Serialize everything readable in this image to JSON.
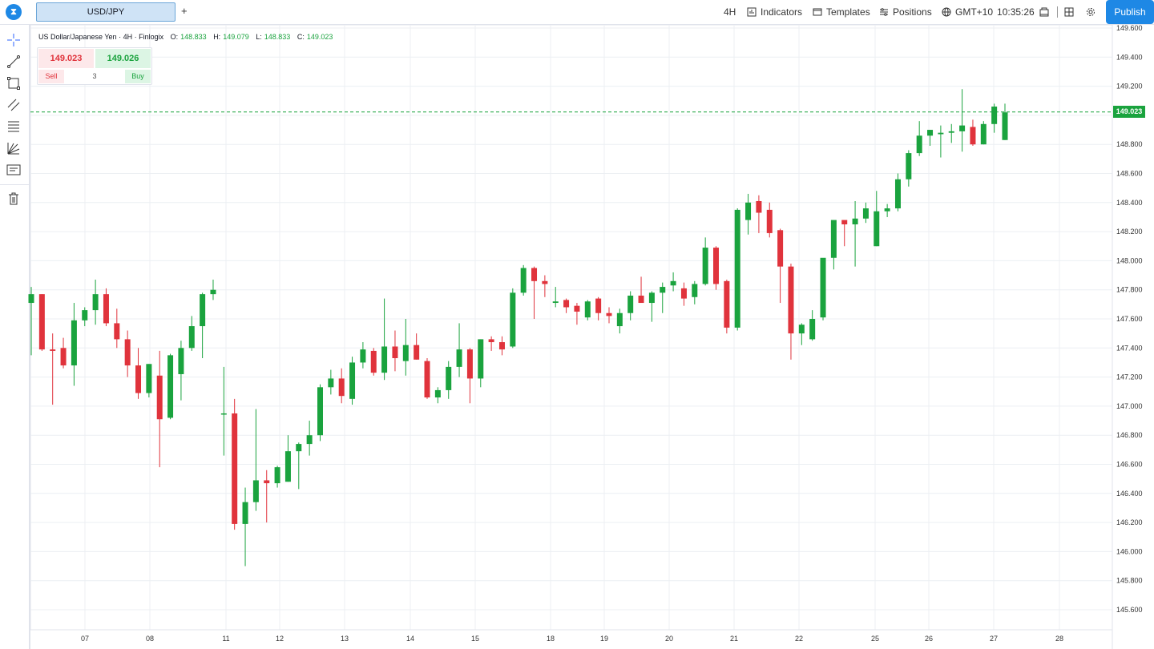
{
  "topbar": {
    "logo_glyph": "⧗",
    "tab_label": "USD/JPY",
    "add_tab": "+",
    "timeframe": "4H",
    "indicators": "Indicators",
    "templates": "Templates",
    "positions": "Positions",
    "timezone": "GMT+10",
    "clock": "10:35:26",
    "publish": "Publish"
  },
  "left_toolbar": [
    "crosshair-icon",
    "trendline-icon",
    "rectangle-icon",
    "parallel-channel-icon",
    "fib-retracement-icon",
    "pitchfork-icon",
    "text-note-icon",
    "trash-icon"
  ],
  "legend": {
    "title": "US Dollar/Japanese Yen · 4H · Finlogix",
    "o_label": "O:",
    "o_value": "148.833",
    "h_label": "H:",
    "h_value": "149.079",
    "l_label": "L:",
    "l_value": "148.833",
    "c_label": "C:",
    "c_value": "149.023"
  },
  "trade_panel": {
    "sell_price": "149.023",
    "buy_price": "149.026",
    "sell_label": "Sell",
    "quantity": "3",
    "buy_label": "Buy"
  },
  "current_price": "149.023",
  "colors": {
    "up": "#1aa33e",
    "down": "#e0333c",
    "accent": "#1e88e5",
    "grid": "#eceff3"
  },
  "chart_data": {
    "type": "candlestick",
    "ylim": [
      145.45,
      149.62
    ],
    "y_ticks": [
      "149.600",
      "149.400",
      "149.200",
      "149.000",
      "148.800",
      "148.600",
      "148.400",
      "148.200",
      "148.000",
      "147.800",
      "147.600",
      "147.400",
      "147.200",
      "147.000",
      "146.800",
      "146.600",
      "146.400",
      "146.200",
      "146.000",
      "145.800",
      "145.600"
    ],
    "x_labels": [
      "07",
      "08",
      "11",
      "12",
      "13",
      "14",
      "15",
      "18",
      "19",
      "20",
      "21",
      "22",
      "25",
      "26",
      "27",
      "28"
    ],
    "candles": [
      {
        "o": 147.71,
        "h": 147.82,
        "l": 147.35,
        "c": 147.77
      },
      {
        "o": 147.77,
        "h": 147.77,
        "l": 147.38,
        "c": 147.39
      },
      {
        "o": 147.39,
        "h": 147.5,
        "l": 147.01,
        "c": 147.38
      },
      {
        "o": 147.4,
        "h": 147.47,
        "l": 147.26,
        "c": 147.28
      },
      {
        "o": 147.28,
        "h": 147.71,
        "l": 147.14,
        "c": 147.59
      },
      {
        "o": 147.59,
        "h": 147.68,
        "l": 147.55,
        "c": 147.66
      },
      {
        "o": 147.66,
        "h": 147.87,
        "l": 147.56,
        "c": 147.77
      },
      {
        "o": 147.77,
        "h": 147.81,
        "l": 147.55,
        "c": 147.57
      },
      {
        "o": 147.57,
        "h": 147.67,
        "l": 147.4,
        "c": 147.46
      },
      {
        "o": 147.46,
        "h": 147.52,
        "l": 147.2,
        "c": 147.28
      },
      {
        "o": 147.28,
        "h": 147.4,
        "l": 147.05,
        "c": 147.09
      },
      {
        "o": 147.09,
        "h": 147.29,
        "l": 147.06,
        "c": 147.29
      },
      {
        "o": 147.21,
        "h": 147.38,
        "l": 146.58,
        "c": 146.91
      },
      {
        "o": 146.92,
        "h": 147.36,
        "l": 146.91,
        "c": 147.35
      },
      {
        "o": 147.22,
        "h": 147.45,
        "l": 147.04,
        "c": 147.4
      },
      {
        "o": 147.4,
        "h": 147.62,
        "l": 147.38,
        "c": 147.55
      },
      {
        "o": 147.55,
        "h": 147.78,
        "l": 147.33,
        "c": 147.77
      },
      {
        "o": 147.77,
        "h": 147.87,
        "l": 147.73,
        "c": 147.8
      },
      {
        "o": 146.95,
        "h": 147.27,
        "l": 146.66,
        "c": 146.95
      },
      {
        "o": 146.95,
        "h": 147.05,
        "l": 146.15,
        "c": 146.19
      },
      {
        "o": 146.19,
        "h": 146.44,
        "l": 145.9,
        "c": 146.34
      },
      {
        "o": 146.34,
        "h": 146.98,
        "l": 146.28,
        "c": 146.49
      },
      {
        "o": 146.49,
        "h": 146.56,
        "l": 146.2,
        "c": 146.47
      },
      {
        "o": 146.47,
        "h": 146.59,
        "l": 146.44,
        "c": 146.58
      },
      {
        "o": 146.48,
        "h": 146.8,
        "l": 146.48,
        "c": 146.69
      },
      {
        "o": 146.69,
        "h": 146.75,
        "l": 146.43,
        "c": 146.74
      },
      {
        "o": 146.74,
        "h": 146.9,
        "l": 146.66,
        "c": 146.8
      },
      {
        "o": 146.8,
        "h": 147.15,
        "l": 146.76,
        "c": 147.13
      },
      {
        "o": 147.13,
        "h": 147.25,
        "l": 147.08,
        "c": 147.19
      },
      {
        "o": 147.19,
        "h": 147.26,
        "l": 147.02,
        "c": 147.07
      },
      {
        "o": 147.05,
        "h": 147.34,
        "l": 147.01,
        "c": 147.3
      },
      {
        "o": 147.3,
        "h": 147.44,
        "l": 147.26,
        "c": 147.39
      },
      {
        "o": 147.38,
        "h": 147.4,
        "l": 147.21,
        "c": 147.23
      },
      {
        "o": 147.23,
        "h": 147.74,
        "l": 147.18,
        "c": 147.41
      },
      {
        "o": 147.41,
        "h": 147.52,
        "l": 147.24,
        "c": 147.33
      },
      {
        "o": 147.31,
        "h": 147.6,
        "l": 147.21,
        "c": 147.42
      },
      {
        "o": 147.42,
        "h": 147.5,
        "l": 147.32,
        "c": 147.32
      },
      {
        "o": 147.31,
        "h": 147.33,
        "l": 147.05,
        "c": 147.06
      },
      {
        "o": 147.06,
        "h": 147.13,
        "l": 147.02,
        "c": 147.11
      },
      {
        "o": 147.11,
        "h": 147.31,
        "l": 147.05,
        "c": 147.27
      },
      {
        "o": 147.27,
        "h": 147.57,
        "l": 147.2,
        "c": 147.39
      },
      {
        "o": 147.39,
        "h": 147.4,
        "l": 147.02,
        "c": 147.19
      },
      {
        "o": 147.19,
        "h": 147.46,
        "l": 147.13,
        "c": 147.46
      },
      {
        "o": 147.46,
        "h": 147.48,
        "l": 147.38,
        "c": 147.44
      },
      {
        "o": 147.44,
        "h": 147.48,
        "l": 147.35,
        "c": 147.39
      },
      {
        "o": 147.41,
        "h": 147.81,
        "l": 147.4,
        "c": 147.78
      },
      {
        "o": 147.78,
        "h": 147.97,
        "l": 147.76,
        "c": 147.95
      },
      {
        "o": 147.95,
        "h": 147.96,
        "l": 147.6,
        "c": 147.86
      },
      {
        "o": 147.86,
        "h": 147.9,
        "l": 147.75,
        "c": 147.84
      },
      {
        "o": 147.71,
        "h": 147.82,
        "l": 147.68,
        "c": 147.72
      },
      {
        "o": 147.73,
        "h": 147.74,
        "l": 147.64,
        "c": 147.68
      },
      {
        "o": 147.69,
        "h": 147.71,
        "l": 147.56,
        "c": 147.65
      },
      {
        "o": 147.61,
        "h": 147.73,
        "l": 147.59,
        "c": 147.72
      },
      {
        "o": 147.74,
        "h": 147.75,
        "l": 147.59,
        "c": 147.64
      },
      {
        "o": 147.64,
        "h": 147.68,
        "l": 147.57,
        "c": 147.62
      },
      {
        "o": 147.55,
        "h": 147.67,
        "l": 147.5,
        "c": 147.64
      },
      {
        "o": 147.64,
        "h": 147.79,
        "l": 147.59,
        "c": 147.76
      },
      {
        "o": 147.76,
        "h": 147.89,
        "l": 147.73,
        "c": 147.71
      },
      {
        "o": 147.71,
        "h": 147.79,
        "l": 147.58,
        "c": 147.78
      },
      {
        "o": 147.78,
        "h": 147.85,
        "l": 147.64,
        "c": 147.82
      },
      {
        "o": 147.83,
        "h": 147.92,
        "l": 147.79,
        "c": 147.86
      },
      {
        "o": 147.81,
        "h": 147.85,
        "l": 147.69,
        "c": 147.74
      },
      {
        "o": 147.75,
        "h": 147.86,
        "l": 147.7,
        "c": 147.84
      },
      {
        "o": 147.84,
        "h": 148.16,
        "l": 147.83,
        "c": 148.09
      },
      {
        "o": 148.09,
        "h": 148.1,
        "l": 147.8,
        "c": 147.84
      },
      {
        "o": 147.86,
        "h": 147.87,
        "l": 147.5,
        "c": 147.54
      },
      {
        "o": 147.54,
        "h": 148.36,
        "l": 147.52,
        "c": 148.35
      },
      {
        "o": 148.28,
        "h": 148.46,
        "l": 148.18,
        "c": 148.4
      },
      {
        "o": 148.41,
        "h": 148.45,
        "l": 148.19,
        "c": 148.33
      },
      {
        "o": 148.35,
        "h": 148.4,
        "l": 148.16,
        "c": 148.19
      },
      {
        "o": 148.21,
        "h": 148.22,
        "l": 147.71,
        "c": 147.96
      },
      {
        "o": 147.96,
        "h": 147.98,
        "l": 147.32,
        "c": 147.5
      },
      {
        "o": 147.5,
        "h": 147.57,
        "l": 147.42,
        "c": 147.56
      },
      {
        "o": 147.46,
        "h": 147.66,
        "l": 147.45,
        "c": 147.6
      },
      {
        "o": 147.61,
        "h": 148.01,
        "l": 147.59,
        "c": 148.02
      },
      {
        "o": 148.02,
        "h": 148.26,
        "l": 147.94,
        "c": 148.28
      },
      {
        "o": 148.28,
        "h": 148.26,
        "l": 148.1,
        "c": 148.25
      },
      {
        "o": 148.25,
        "h": 148.41,
        "l": 147.96,
        "c": 148.29
      },
      {
        "o": 148.29,
        "h": 148.4,
        "l": 148.26,
        "c": 148.36
      },
      {
        "o": 148.1,
        "h": 148.48,
        "l": 148.1,
        "c": 148.34
      },
      {
        "o": 148.34,
        "h": 148.39,
        "l": 148.3,
        "c": 148.36
      },
      {
        "o": 148.36,
        "h": 148.6,
        "l": 148.34,
        "c": 148.56
      },
      {
        "o": 148.56,
        "h": 148.76,
        "l": 148.51,
        "c": 148.74
      },
      {
        "o": 148.74,
        "h": 148.96,
        "l": 148.72,
        "c": 148.86
      },
      {
        "o": 148.86,
        "h": 148.9,
        "l": 148.79,
        "c": 148.9
      },
      {
        "o": 148.87,
        "h": 148.93,
        "l": 148.71,
        "c": 148.88
      },
      {
        "o": 148.88,
        "h": 148.94,
        "l": 148.81,
        "c": 148.89
      },
      {
        "o": 148.89,
        "h": 149.18,
        "l": 148.75,
        "c": 148.93
      },
      {
        "o": 148.92,
        "h": 148.97,
        "l": 148.79,
        "c": 148.8
      },
      {
        "o": 148.8,
        "h": 148.96,
        "l": 148.8,
        "c": 148.94
      },
      {
        "o": 148.94,
        "h": 149.08,
        "l": 148.88,
        "c": 149.06
      },
      {
        "o": 148.83,
        "h": 149.08,
        "l": 148.83,
        "c": 149.02
      }
    ]
  }
}
